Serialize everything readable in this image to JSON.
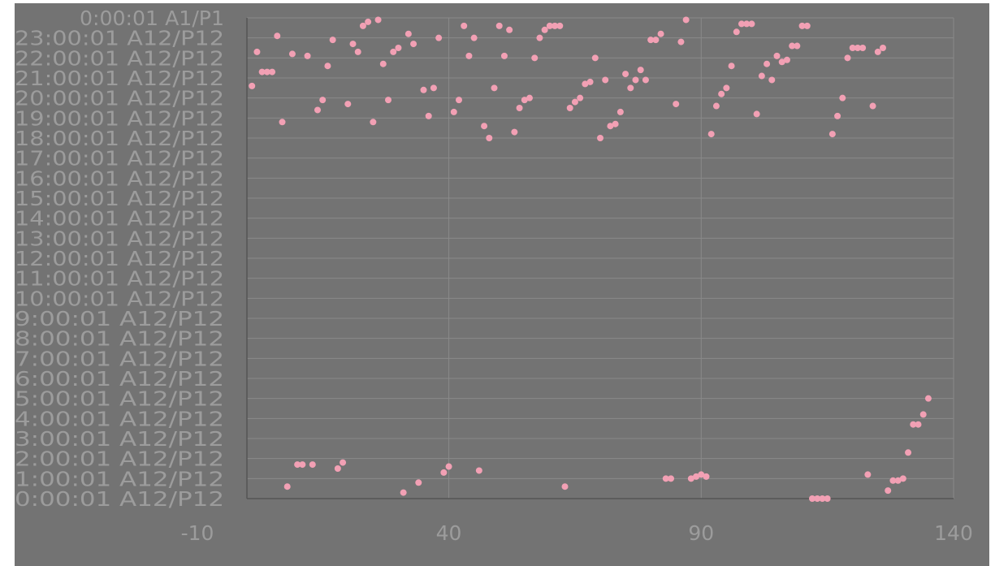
{
  "chart_data": {
    "type": "scatter",
    "title": "",
    "xlabel": "",
    "ylabel": "",
    "xlim": [
      0,
      140
    ],
    "x_ticks": [
      -10,
      40,
      90,
      140
    ],
    "x_tick_labels": [
      "-10",
      "40",
      "90",
      "140"
    ],
    "ylim": [
      0,
      24
    ],
    "y_ticks": [
      0,
      1,
      2,
      3,
      4,
      5,
      6,
      7,
      8,
      9,
      10,
      11,
      12,
      13,
      14,
      15,
      16,
      17,
      18,
      19,
      20,
      21,
      22,
      23,
      24
    ],
    "y_tick_labels": [
      "0:00:01 A12/P12",
      "1:00:01 A12/P12",
      "2:00:01 A12/P12",
      "3:00:01 A12/P12",
      "4:00:01 A12/P12",
      "5:00:01 A12/P12",
      "6:00:01 A12/P12",
      "7:00:01 A12/P12",
      "8:00:01 A12/P12",
      "9:00:01 A12/P12",
      "10:00:01 A12/P12",
      "11:00:01 A12/P12",
      "12:00:01 A12/P12",
      "13:00:01 A12/P12",
      "14:00:01 A12/P12",
      "15:00:01 A12/P12",
      "16:00:01 A12/P12",
      "17:00:01 A12/P12",
      "18:00:01 A12/P12",
      "19:00:01 A12/P12",
      "20:00:01 A12/P12",
      "21:00:01 A12/P12",
      "22:00:01 A12/P12",
      "23:00:01 A12/P12",
      "0:00:01 A1/P1"
    ],
    "grid": true,
    "legend": "none",
    "colors": {
      "plot_background": "#737373",
      "gridline": "#8a8a8a",
      "axis_line": "#555555",
      "tick_label": "#9c9c9c",
      "marker": "#f2a0b4"
    },
    "series": [
      {
        "points": [
          [
            1,
            20.6
          ],
          [
            2,
            22.3
          ],
          [
            3,
            21.3
          ],
          [
            4,
            21.3
          ],
          [
            5,
            21.3
          ],
          [
            6,
            23.1
          ],
          [
            7,
            18.8
          ],
          [
            8,
            0.6
          ],
          [
            9,
            22.2
          ],
          [
            10,
            1.7
          ],
          [
            11,
            1.7
          ],
          [
            12,
            22.1
          ],
          [
            13,
            1.7
          ],
          [
            14,
            19.4
          ],
          [
            15,
            19.9
          ],
          [
            16,
            21.6
          ],
          [
            17,
            22.9
          ],
          [
            18,
            1.5
          ],
          [
            19,
            1.8
          ],
          [
            20,
            19.7
          ],
          [
            21,
            22.7
          ],
          [
            22,
            22.3
          ],
          [
            23,
            23.6
          ],
          [
            24,
            23.8
          ],
          [
            25,
            18.8
          ],
          [
            26,
            23.9
          ],
          [
            27,
            21.7
          ],
          [
            28,
            19.9
          ],
          [
            29,
            22.3
          ],
          [
            30,
            22.5
          ],
          [
            31,
            0.3
          ],
          [
            32,
            23.2
          ],
          [
            33,
            22.7
          ],
          [
            34,
            0.8
          ],
          [
            35,
            20.4
          ],
          [
            36,
            19.1
          ],
          [
            37,
            20.5
          ],
          [
            38,
            23.0
          ],
          [
            39,
            1.3
          ],
          [
            40,
            1.6
          ],
          [
            41,
            19.3
          ],
          [
            42,
            19.9
          ],
          [
            43,
            23.6
          ],
          [
            44,
            22.1
          ],
          [
            45,
            23.0
          ],
          [
            46,
            1.4
          ],
          [
            47,
            18.6
          ],
          [
            48,
            18.0
          ],
          [
            49,
            20.5
          ],
          [
            50,
            23.6
          ],
          [
            51,
            22.1
          ],
          [
            52,
            23.4
          ],
          [
            53,
            18.3
          ],
          [
            54,
            19.5
          ],
          [
            55,
            19.9
          ],
          [
            56,
            20.0
          ],
          [
            57,
            22.0
          ],
          [
            58,
            23.0
          ],
          [
            59,
            23.4
          ],
          [
            60,
            23.6
          ],
          [
            61,
            23.6
          ],
          [
            62,
            23.6
          ],
          [
            63,
            0.6
          ],
          [
            64,
            19.5
          ],
          [
            65,
            19.8
          ],
          [
            66,
            20.0
          ],
          [
            67,
            20.7
          ],
          [
            68,
            20.8
          ],
          [
            69,
            22.0
          ],
          [
            70,
            18.0
          ],
          [
            71,
            20.9
          ],
          [
            72,
            18.6
          ],
          [
            73,
            18.7
          ],
          [
            74,
            19.3
          ],
          [
            75,
            21.2
          ],
          [
            76,
            20.5
          ],
          [
            77,
            20.9
          ],
          [
            78,
            21.4
          ],
          [
            79,
            20.9
          ],
          [
            80,
            22.9
          ],
          [
            81,
            22.9
          ],
          [
            82,
            23.2
          ],
          [
            83,
            1.0
          ],
          [
            84,
            1.0
          ],
          [
            85,
            19.7
          ],
          [
            86,
            22.8
          ],
          [
            87,
            23.9
          ],
          [
            88,
            1.0
          ],
          [
            89,
            1.1
          ],
          [
            90,
            1.2
          ],
          [
            91,
            1.1
          ],
          [
            92,
            18.2
          ],
          [
            93,
            19.6
          ],
          [
            94,
            20.2
          ],
          [
            95,
            20.5
          ],
          [
            96,
            21.6
          ],
          [
            97,
            23.3
          ],
          [
            98,
            23.7
          ],
          [
            99,
            23.7
          ],
          [
            100,
            23.7
          ],
          [
            101,
            19.2
          ],
          [
            102,
            21.1
          ],
          [
            103,
            21.7
          ],
          [
            104,
            20.9
          ],
          [
            105,
            22.1
          ],
          [
            106,
            21.8
          ],
          [
            107,
            21.9
          ],
          [
            108,
            22.6
          ],
          [
            109,
            22.6
          ],
          [
            110,
            23.6
          ],
          [
            111,
            23.6
          ],
          [
            112,
            0.0
          ],
          [
            113,
            0.0
          ],
          [
            114,
            0.0
          ],
          [
            115,
            0.0
          ],
          [
            116,
            18.2
          ],
          [
            117,
            19.1
          ],
          [
            118,
            20.0
          ],
          [
            119,
            22.0
          ],
          [
            120,
            22.5
          ],
          [
            121,
            22.5
          ],
          [
            122,
            22.5
          ],
          [
            123,
            1.2
          ],
          [
            124,
            19.6
          ],
          [
            125,
            22.3
          ],
          [
            126,
            22.5
          ],
          [
            127,
            0.4
          ],
          [
            128,
            0.9
          ],
          [
            129,
            0.9
          ],
          [
            130,
            1.0
          ],
          [
            131,
            2.3
          ],
          [
            132,
            3.7
          ],
          [
            133,
            3.7
          ],
          [
            134,
            4.2
          ],
          [
            135,
            5.0
          ]
        ]
      }
    ]
  }
}
